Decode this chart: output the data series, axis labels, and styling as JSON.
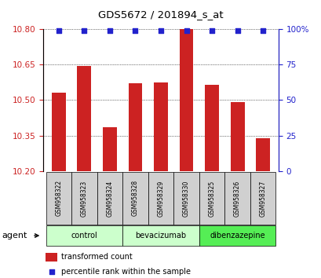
{
  "title": "GDS5672 / 201894_s_at",
  "samples": [
    "GSM958322",
    "GSM958323",
    "GSM958324",
    "GSM958328",
    "GSM958329",
    "GSM958330",
    "GSM958325",
    "GSM958326",
    "GSM958327"
  ],
  "bar_values": [
    10.53,
    10.645,
    10.385,
    10.57,
    10.575,
    10.8,
    10.565,
    10.49,
    10.34
  ],
  "percentile_values": [
    99,
    99,
    99,
    99,
    99,
    99,
    99,
    99,
    99
  ],
  "bar_color": "#cc2222",
  "percentile_color": "#2222cc",
  "ylim_left": [
    10.2,
    10.8
  ],
  "ylim_right": [
    0,
    100
  ],
  "yticks_left": [
    10.2,
    10.35,
    10.5,
    10.65,
    10.8
  ],
  "yticks_right": [
    0,
    25,
    50,
    75,
    100
  ],
  "groups": [
    {
      "label": "control",
      "start": 0,
      "end": 3,
      "color": "#ccffcc"
    },
    {
      "label": "bevacizumab",
      "start": 3,
      "end": 6,
      "color": "#ccffcc"
    },
    {
      "label": "dibenzazepine",
      "start": 6,
      "end": 9,
      "color": "#55ee55"
    }
  ],
  "agent_label": "agent",
  "legend_bar_label": "transformed count",
  "legend_pct_label": "percentile rank within the sample",
  "background_color": "#ffffff",
  "plot_bg_color": "#ffffff",
  "grid_color": "#000000",
  "tick_label_color_left": "#cc2222",
  "tick_label_color_right": "#2222cc",
  "sample_box_color": "#d0d0d0"
}
